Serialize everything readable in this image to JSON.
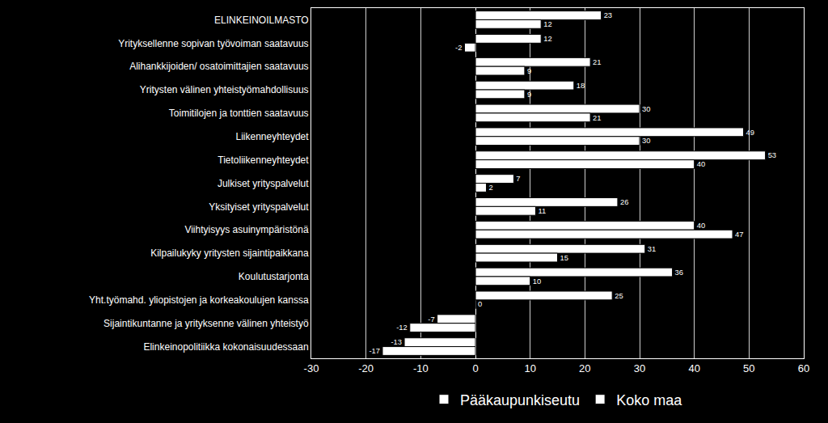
{
  "chart_data": {
    "type": "bar",
    "orientation": "horizontal",
    "categories": [
      "ELINKEINOILMASTO",
      "Yrityksellenne sopivan työvoiman saatavuus",
      "Alihankkijoiden/ osatoimittajien saatavuus",
      "Yritysten välinen yhteistyömahdollisuus",
      "Toimitilojen ja tonttien saatavuus",
      "Liikenneyhteydet",
      "Tietoliikenneyhteydet",
      "Julkiset yrityspalvelut",
      "Yksityiset yrityspalvelut",
      "Viihtyisyys asuinympäristönä",
      "Kilpailukyky yritysten sijaintipaikkana",
      "Koulutustarjonta",
      "Yht.työmahd. yliopistojen ja korkeakoulujen kanssa",
      "Sijaintikuntanne ja yrityksenne välinen yhteistyö",
      "Elinkeinopolitiikka kokonaisuudessaan"
    ],
    "series": [
      {
        "name": "Pääkaupunkiseutu",
        "color": "#ffffff",
        "values": [
          23,
          12,
          21,
          18,
          30,
          49,
          53,
          7,
          26,
          40,
          31,
          36,
          25,
          -7,
          -13
        ]
      },
      {
        "name": "Koko maa",
        "color": "#ffffff",
        "values": [
          12,
          -2,
          9,
          9,
          21,
          30,
          40,
          2,
          11,
          47,
          15,
          10,
          0,
          -12,
          -17
        ]
      }
    ],
    "xlim": [
      -30,
      60
    ],
    "xticks": [
      -30,
      -20,
      -10,
      0,
      10,
      20,
      30,
      40,
      50,
      60
    ],
    "grid": true,
    "legend": "bottom",
    "data_labels": true
  }
}
